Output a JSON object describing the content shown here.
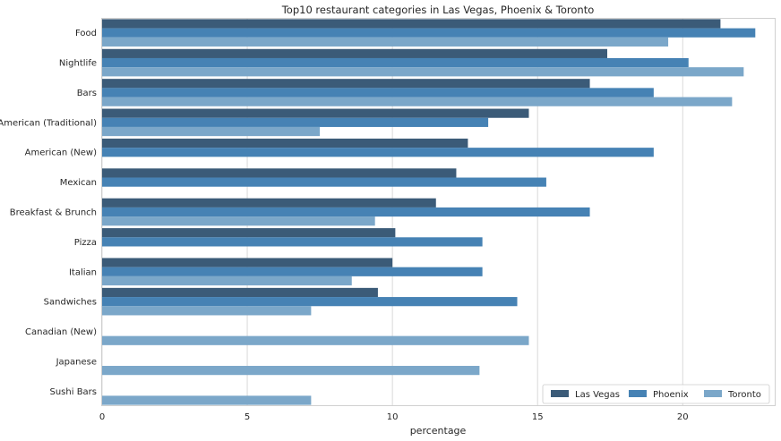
{
  "chart_data": {
    "type": "bar",
    "orientation": "horizontal",
    "title": "Top10 restaurant categories in Las Vegas, Phoenix & Toronto",
    "xlabel": "percentage",
    "ylabel": "",
    "xlim": [
      0,
      23.2
    ],
    "xticks": [
      0,
      5,
      10,
      15,
      20
    ],
    "grid": "x",
    "legend_position": "lower-right",
    "categories": [
      "Food",
      "Nightlife",
      "Bars",
      "American (Traditional)",
      "American (New)",
      "Mexican",
      "Breakfast & Brunch",
      "Pizza",
      "Italian",
      "Sandwiches",
      "Canadian (New)",
      "Japanese",
      "Sushi Bars"
    ],
    "series": [
      {
        "name": "Las Vegas",
        "color": "#3b5b78",
        "values": [
          21.3,
          17.4,
          16.8,
          14.7,
          12.6,
          12.2,
          11.5,
          10.1,
          10.0,
          9.5,
          null,
          null,
          null
        ]
      },
      {
        "name": "Phoenix",
        "color": "#4682b4",
        "values": [
          22.5,
          20.2,
          19.0,
          13.3,
          19.0,
          15.3,
          16.8,
          13.1,
          13.1,
          14.3,
          null,
          null,
          null
        ]
      },
      {
        "name": "Toronto",
        "color": "#7ba7c9",
        "values": [
          19.5,
          22.1,
          21.7,
          7.5,
          null,
          null,
          9.4,
          null,
          8.6,
          7.2,
          14.7,
          13.0,
          7.2
        ]
      }
    ]
  }
}
